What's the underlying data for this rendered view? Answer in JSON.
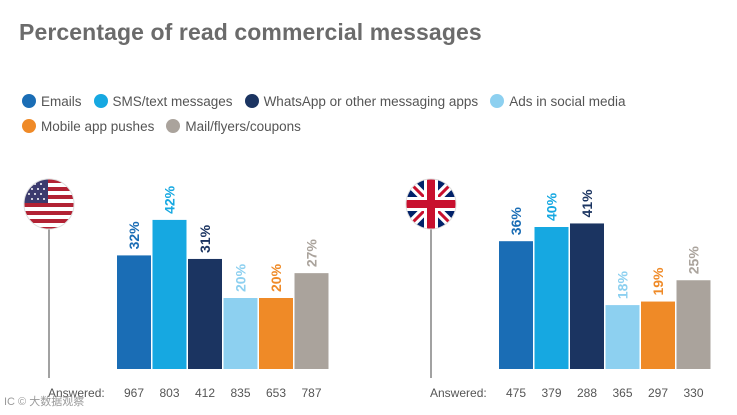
{
  "title": "Percentage of read commercial messages",
  "legend": {
    "row1": [
      {
        "label": "Emails",
        "color": "#1a6db5"
      },
      {
        "label": "SMS/text messages",
        "color": "#16a8e1"
      },
      {
        "label": "WhatsApp or other messaging apps",
        "color": "#1b3461"
      },
      {
        "label": "Ads in social media",
        "color": "#8dd0f0"
      }
    ],
    "row2": [
      {
        "label": "Mobile app pushes",
        "color": "#ef8a27"
      },
      {
        "label": "Mail/flyers/coupons",
        "color": "#aaa39c"
      }
    ]
  },
  "answered_label": "Answered:",
  "watermark": "IC © 大数据观察",
  "chart_data": [
    {
      "type": "bar",
      "flag": "us-flag-icon",
      "categories": [
        "Emails",
        "SMS/text messages",
        "WhatsApp or other messaging apps",
        "Ads in social media",
        "Mobile app pushes",
        "Mail/flyers/coupons"
      ],
      "values": [
        32,
        42,
        31,
        20,
        20,
        27
      ],
      "value_labels": [
        "32%",
        "42%",
        "31%",
        "20%",
        "20%",
        "27%"
      ],
      "answered": [
        "967",
        "803",
        "412",
        "835",
        "653",
        "787"
      ],
      "colors": [
        "#1a6db5",
        "#16a8e1",
        "#1b3461",
        "#8dd0f0",
        "#ef8a27",
        "#aaa39c"
      ]
    },
    {
      "type": "bar",
      "flag": "uk-flag-icon",
      "categories": [
        "Emails",
        "SMS/text messages",
        "WhatsApp or other messaging apps",
        "Ads in social media",
        "Mobile app pushes",
        "Mail/flyers/coupons"
      ],
      "values": [
        36,
        40,
        41,
        18,
        19,
        25
      ],
      "value_labels": [
        "36%",
        "40%",
        "41%",
        "18%",
        "19%",
        "25%"
      ],
      "answered": [
        "475",
        "379",
        "288",
        "365",
        "297",
        "330"
      ],
      "colors": [
        "#1a6db5",
        "#16a8e1",
        "#1b3461",
        "#8dd0f0",
        "#ef8a27",
        "#aaa39c"
      ]
    }
  ]
}
